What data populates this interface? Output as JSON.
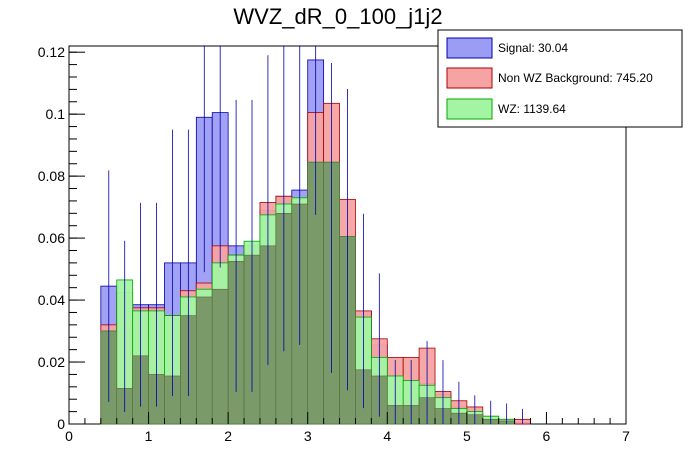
{
  "chart_data": {
    "type": "bar",
    "title": "WVZ_dR_0_100_j1j2",
    "xlabel": "",
    "ylabel": "",
    "xlim": [
      0,
      7
    ],
    "ylim": [
      0,
      0.122
    ],
    "grid": false,
    "legend_position": "top-right",
    "x_ticks": [
      "0",
      "1",
      "2",
      "3",
      "4",
      "5",
      "6",
      "7"
    ],
    "y_ticks": [
      "0",
      "0.02",
      "0.04",
      "0.06",
      "0.08",
      "0.1",
      "0.12"
    ],
    "bin_edges": [
      0.4,
      0.6,
      0.8,
      1.0,
      1.2,
      1.4,
      1.6,
      1.8,
      2.0,
      2.2,
      2.4,
      2.6,
      2.8,
      3.0,
      3.2,
      3.4,
      3.6,
      3.8,
      4.0,
      4.2,
      4.4,
      4.6,
      4.8,
      5.0,
      5.2,
      5.4,
      5.6,
      5.8,
      6.0
    ],
    "series": [
      {
        "name": "Signal: 30.04",
        "color": "#9c9cf5",
        "edge": "#0000aa",
        "values": [
          0.0445,
          0.0315,
          0.0385,
          0.0385,
          0.052,
          0.052,
          0.099,
          0.1005,
          0.0575,
          0.0575,
          0.069,
          0.0735,
          0.0755,
          0.1175,
          0.0665,
          0.0595,
          0.0365,
          0.0255,
          0.0095,
          0.0095,
          0.013,
          0.0095,
          0.0055,
          0.003,
          0.002,
          0.0015,
          0.0005,
          0.0
        ]
      },
      {
        "name": "Non WZ Background: 745.20",
        "color": "#f5a3a3",
        "edge": "#aa0000",
        "values": [
          0.032,
          0.0425,
          0.0375,
          0.0375,
          0.035,
          0.043,
          0.0455,
          0.0575,
          0.0545,
          0.0575,
          0.0715,
          0.0735,
          0.0725,
          0.1005,
          0.1035,
          0.0725,
          0.0365,
          0.0275,
          0.0215,
          0.0215,
          0.0245,
          0.0105,
          0.0075,
          0.0055,
          0.0025,
          0.0015,
          0.0015,
          0.0
        ]
      },
      {
        "name": "WZ: 1139.64",
        "color": "#a3f5a3",
        "edge": "#00aa00",
        "values": [
          0.03,
          0.0465,
          0.0365,
          0.0365,
          0.035,
          0.041,
          0.0435,
          0.052,
          0.0545,
          0.059,
          0.0675,
          0.071,
          0.073,
          0.0845,
          0.0845,
          0.0605,
          0.0345,
          0.0215,
          0.0155,
          0.014,
          0.0125,
          0.0085,
          0.005,
          0.004,
          0.0025,
          0.0015,
          0.0,
          0.0
        ]
      }
    ],
    "overlap_values": [
      0.03,
      0.0115,
      0.022,
      0.016,
      0.0155,
      0.035,
      0.041,
      0.0435,
      0.0525,
      0.0545,
      0.0575,
      0.068,
      0.071,
      0.0845,
      0.0845,
      0.0605,
      0.0175,
      0.0155,
      0.006,
      0.006,
      0.0085,
      0.005,
      0.0035,
      0.003,
      0.0015,
      0.001,
      0.0,
      0.0
    ],
    "overlap_color": "#7a9a6a"
  }
}
